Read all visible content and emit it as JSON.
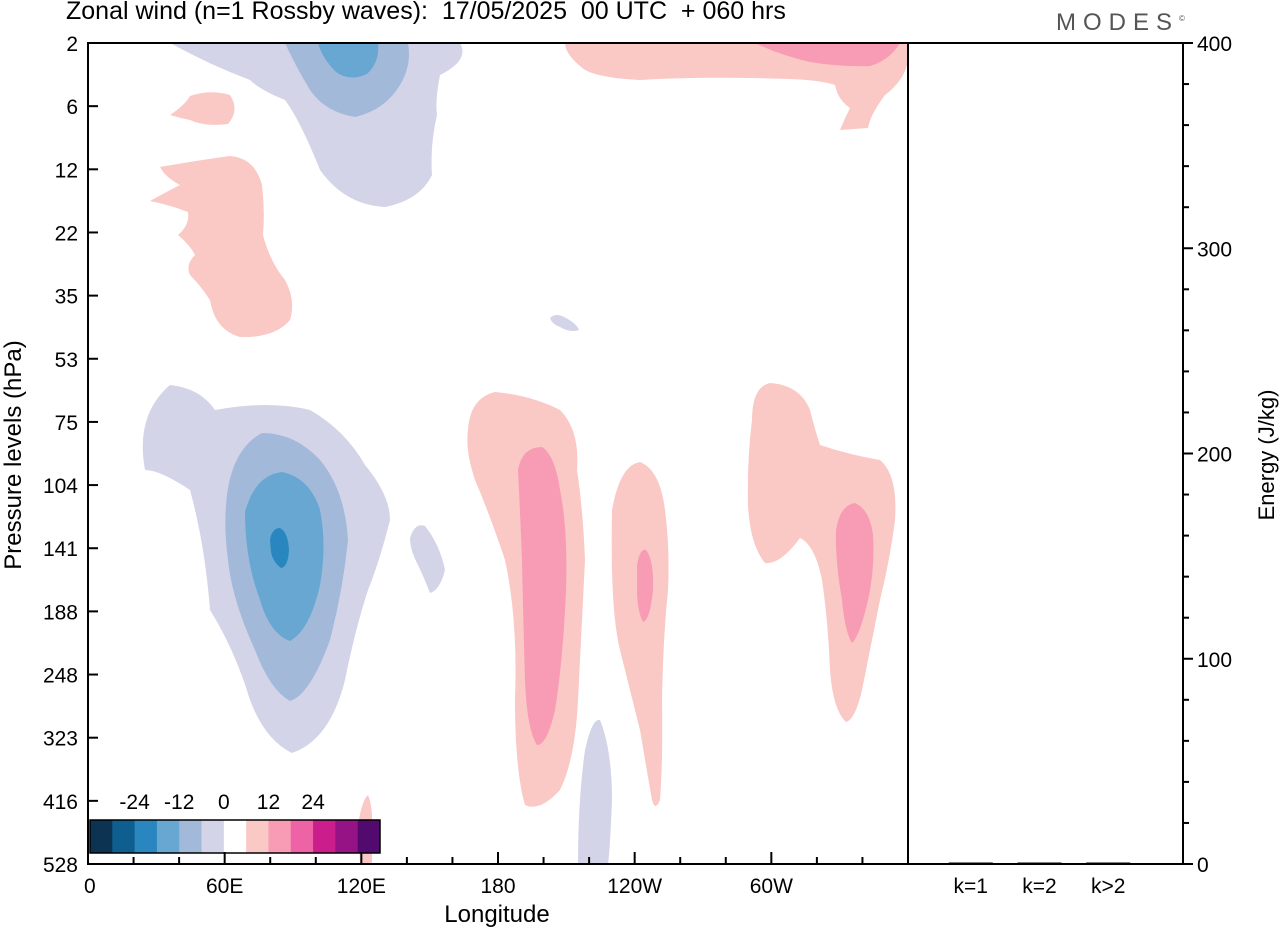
{
  "title": "Zonal wind (n=1 Rossby waves):  17/05/2025  00 UTC  + 060 hrs",
  "brand": "MODES",
  "brand_mark": "©",
  "chart_data": [
    {
      "type": "heatmap",
      "title": "Zonal wind (n=1 Rossby waves):  17/05/2025  00 UTC  + 060 hrs",
      "xlabel": "Longitude",
      "ylabel": "Pressure levels (hPa)",
      "x_ticks": [
        "0",
        "60E",
        "120E",
        "180",
        "120W",
        "60W"
      ],
      "x_tick_values": [
        0,
        60,
        120,
        180,
        240,
        300
      ],
      "xlim": [
        0,
        360
      ],
      "y_ticks": [
        "2",
        "6",
        "12",
        "22",
        "35",
        "53",
        "75",
        "104",
        "141",
        "188",
        "248",
        "323",
        "416",
        "528"
      ],
      "y_scale": "model levels (top = 2 hPa, bottom = 528 hPa)",
      "colorbar": {
        "ticks": [
          "-24",
          "-12",
          "0",
          "12",
          "24"
        ],
        "colors": [
          "#0d3352",
          "#0e5f8f",
          "#2a86bf",
          "#67a7d1",
          "#a3b9da",
          "#d3d4e8",
          "#ffffff",
          "#fac8c5",
          "#f79cb4",
          "#ee62a6",
          "#cc1d8d",
          "#951384",
          "#520a6e"
        ]
      },
      "features": [
        {
          "sign": "negative",
          "max_level": "-18 to -24",
          "lon_range": [
            "30E",
            "130E"
          ],
          "level_range": [
            "75",
            "323"
          ],
          "core": "85E, 141 hPa"
        },
        {
          "sign": "negative",
          "max_level": "-12 to -18",
          "lon_range": [
            "35E",
            "120E"
          ],
          "level_range": [
            "2",
            "22"
          ],
          "core": "90E, 2 hPa"
        },
        {
          "sign": "positive",
          "max_level": "6 to 12",
          "lon_range": [
            "175E",
            "160W"
          ],
          "level_range": [
            "75",
            "416"
          ],
          "core": "165W, 141 hPa"
        },
        {
          "sign": "positive",
          "max_level": "6 to 12",
          "lon_range": [
            "125W",
            "110W"
          ],
          "level_range": [
            "104",
            "416"
          ],
          "core": "120W, 160 hPa"
        },
        {
          "sign": "positive",
          "max_level": "6 to 12",
          "lon_range": [
            "70W",
            "5W"
          ],
          "level_range": [
            "75",
            "323"
          ],
          "core": "20W, 141 hPa"
        },
        {
          "sign": "positive",
          "max_level": "6 to 12",
          "lon_range": [
            "120W",
            "0"
          ],
          "level_range": [
            "2",
            "6"
          ],
          "core": "35W, 2 hPa"
        },
        {
          "sign": "positive",
          "max_level": "0 to 6",
          "lon_range": [
            "30E",
            "90E"
          ],
          "level_range": [
            "12",
            "35"
          ],
          "core": "55E, 22 hPa"
        }
      ]
    },
    {
      "type": "bar",
      "ylabel": "Energy (J/kg)",
      "categories": [
        "k=1",
        "k=2",
        "k>2"
      ],
      "values": [
        0.3,
        0.1,
        0.3
      ],
      "ylim": [
        0,
        400
      ],
      "y_ticks": [
        "0",
        "100",
        "200",
        "300",
        "400"
      ]
    }
  ]
}
